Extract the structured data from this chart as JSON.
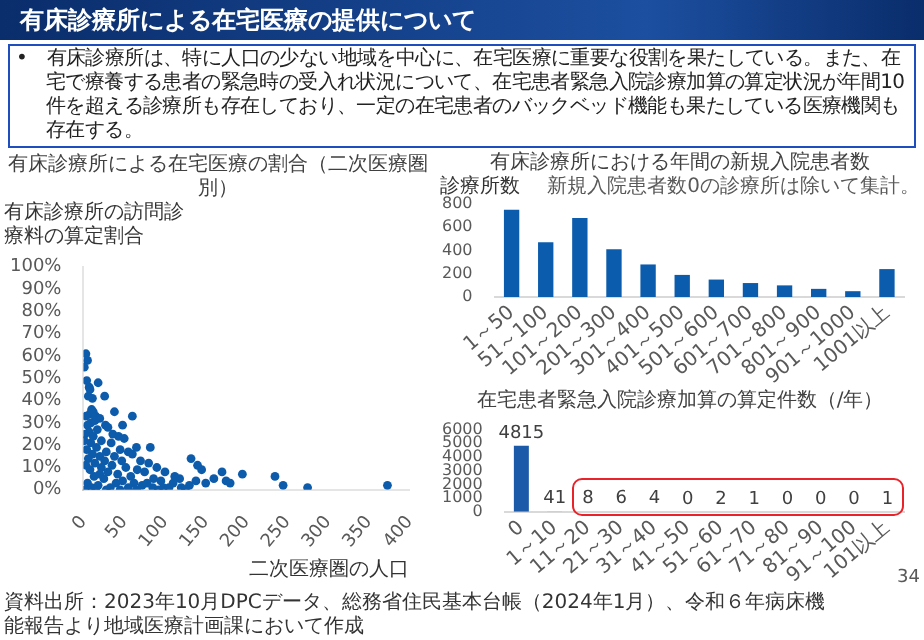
{
  "chart_data": [
    {
      "type": "other",
      "title": "有床診療所による在宅医療の提供について",
      "annotations": [
        "•　有床診療所は、特に人口の少ない地域を中心に、在宅医療に重要な役割を果たしている。また、在宅で療養する患者の緊急時の受入れ状況について、在宅患者緊急入院診療加算の算定状況が年間10件を超える診療所も存在しており、一定の在宅患者のバックベッド機能も果たしている医療機関も存在する。"
      ]
    },
    {
      "type": "scatter",
      "title": "有床診療所による在宅医療の割合（二次医療圏別）",
      "ylabel": "有床診療所の訪問診療料の算定割合",
      "xlabel": "二次医療圏の人口",
      "color": "#0d5cab",
      "marker": "circle",
      "x": [
        3,
        5,
        1,
        4,
        18,
        7,
        8,
        6,
        26,
        11,
        10,
        38,
        12,
        8,
        15,
        3,
        60,
        20,
        14,
        9,
        5,
        27,
        48,
        30,
        17,
        7,
        2,
        36,
        43,
        12,
        50,
        22,
        1,
        34,
        9,
        65,
        82,
        16,
        45,
        4,
        28,
        55,
        60,
        11,
        38,
        20,
        132,
        6,
        47,
        70,
        26,
        80,
        14,
        35,
        140,
        3,
        90,
        22,
        52,
        145,
        66,
        8,
        30,
        170,
        100,
        75,
        42,
        195,
        235,
        118,
        13,
        58,
        86,
        138,
        25,
        95,
        150,
        175,
        110,
        180,
        40,
        62,
        5,
        245,
        373,
        18,
        72,
        130,
        98,
        275,
        33,
        105,
        120,
        10,
        55,
        2,
        85,
        45,
        28,
        15,
        65,
        92,
        125,
        20,
        48,
        78,
        112,
        160
      ],
      "values": [
        61,
        58,
        55,
        49,
        48,
        46,
        45,
        42,
        42,
        41,
        36,
        35,
        35,
        34,
        33,
        33,
        33,
        32,
        31,
        30,
        29,
        29,
        29,
        28,
        27,
        26,
        25,
        25,
        24,
        24,
        23,
        22,
        22,
        21,
        21,
        19,
        19,
        19,
        18,
        18,
        17,
        17,
        16,
        16,
        15,
        15,
        14,
        14,
        13,
        13,
        13,
        12,
        12,
        11,
        11,
        11,
        10,
        10,
        10,
        9,
        9,
        9,
        8,
        8,
        8,
        8,
        7,
        7,
        6,
        5,
        6,
        6,
        5,
        4,
        5,
        4,
        3,
        4,
        3,
        3,
        3,
        3,
        3,
        2,
        2,
        2,
        2,
        2,
        1,
        1,
        1,
        1,
        1,
        1,
        1,
        0,
        1,
        0,
        0,
        0,
        0,
        0,
        0,
        7,
        4,
        3,
        6,
        5
      ],
      "xlim": [
        0,
        400
      ],
      "xticks": [
        0,
        50,
        100,
        150,
        200,
        250,
        300,
        350,
        400
      ],
      "ylim": [
        0,
        100
      ],
      "yticks": [
        {
          "value": 0,
          "label": "0%"
        },
        {
          "value": 10,
          "label": "10%"
        },
        {
          "value": 20,
          "label": "20%"
        },
        {
          "value": 30,
          "label": "30%"
        },
        {
          "value": 40,
          "label": "40%"
        },
        {
          "value": 50,
          "label": "50%"
        },
        {
          "value": 60,
          "label": "60%"
        },
        {
          "value": 70,
          "label": "70%"
        },
        {
          "value": 80,
          "label": "80%"
        },
        {
          "value": 90,
          "label": "90%"
        },
        {
          "value": 100,
          "label": "100%"
        }
      ],
      "annotations": [
        "資料出所：2023年10月DPCデータ、総務省住民基本台帳（2024年1月）、令和６年病床機能報告より地域医療計画課において作成"
      ]
    },
    {
      "type": "bar",
      "title": "有床診療所における年間の新規入院患者数",
      "ylabel": "診療所数",
      "color": "#0b5cad",
      "categories": [
        "1～50",
        "51～100",
        "101～200",
        "201～300",
        "301～400",
        "401～500",
        "501～600",
        "601～700",
        "701～800",
        "801～900",
        "901～1000",
        "1001以上"
      ],
      "values": [
        750,
        470,
        680,
        410,
        280,
        190,
        150,
        120,
        100,
        70,
        50,
        240
      ],
      "ylim": [
        0,
        800
      ],
      "yticks": [
        0,
        200,
        400,
        600,
        800
      ],
      "annotations": [
        "新規入院患者数0の診療所は除いて集計。"
      ]
    },
    {
      "type": "bar",
      "title": "在宅患者緊急入院診療加算の算定件数（/年）",
      "categories": [
        "0",
        "1～10",
        "11～20",
        "21～30",
        "31～40",
        "41～50",
        "51～60",
        "61～70",
        "71～80",
        "81～90",
        "91～100",
        "101以上"
      ],
      "values": [
        4815,
        41,
        8,
        6,
        4,
        0,
        2,
        1,
        0,
        0,
        0,
        1
      ],
      "colors": [
        "#1a5aa8",
        "#a9c6e6",
        "#a9c6e6",
        "#a9c6e6",
        "#a9c6e6",
        "#a9c6e6",
        "#a9c6e6",
        "#a9c6e6",
        "#a9c6e6",
        "#a9c6e6",
        "#a9c6e6",
        "#a9c6e6"
      ],
      "ylim": [
        0,
        6000
      ],
      "yticks": [
        0,
        1000,
        2000,
        3000,
        4000,
        5000,
        6000
      ],
      "data_labels": true,
      "annotations": [
        "34"
      ]
    }
  ]
}
